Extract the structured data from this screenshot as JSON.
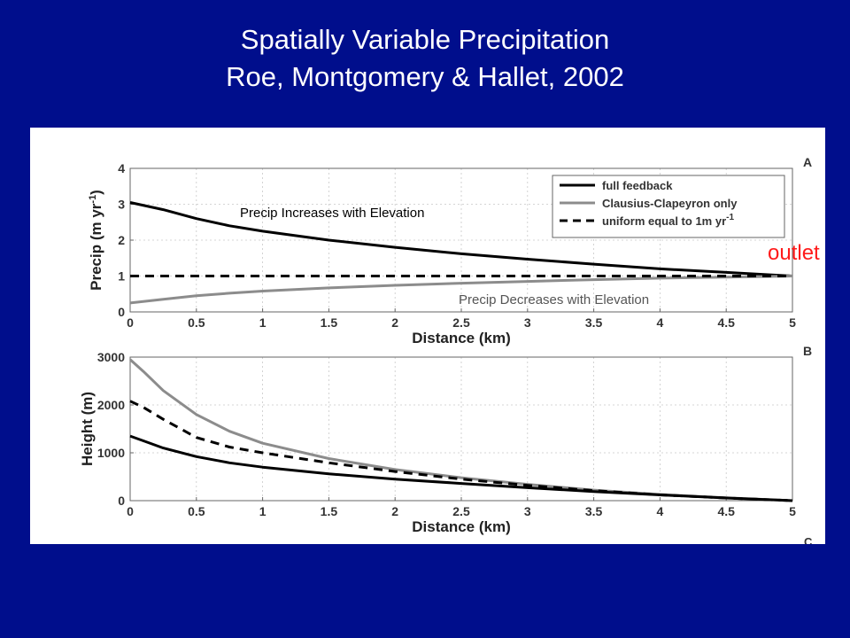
{
  "slide": {
    "title_line1": "Spatially Variable Precipitation",
    "title_line2": "Roe, Montgomery & Hallet, 2002"
  },
  "colors": {
    "background": "#000e8c",
    "title": "#ffffff",
    "outlet": "#ff1a1a",
    "full_feedback": "#000000",
    "clausius_clapeyron": "#8c8c8c",
    "uniform": "#000000",
    "annotation_increase": "#000000",
    "annotation_decrease": "#555555"
  },
  "outlet_label": "outlet",
  "chart_data": [
    {
      "type": "line",
      "panel_label": "A",
      "xlabel": "Distance (km)",
      "ylabel": "Precip (m yr",
      "ylabel_exp": "-1",
      "ylabel_close": ")",
      "xlim": [
        0,
        5
      ],
      "ylim": [
        0,
        4
      ],
      "xticks": [
        "0",
        "0.5",
        "1",
        "1.5",
        "2",
        "2.5",
        "3",
        "3.5",
        "4",
        "4.5",
        "5"
      ],
      "yticks": [
        "0",
        "1",
        "2",
        "3",
        "4"
      ],
      "grid": true,
      "legend_position": "top-right",
      "legend": {
        "entry1": "full feedback",
        "entry2": "Clausius-Clapeyron only",
        "entry3": "uniform equal to 1m yr",
        "entry3_exp": "-1"
      },
      "annotations": {
        "increase": "Precip Increases with Elevation",
        "decrease": "Precip Decreases with Elevation"
      },
      "series": [
        {
          "name": "full feedback",
          "style": "solid-black",
          "x": [
            0,
            0.25,
            0.5,
            0.75,
            1,
            1.5,
            2,
            2.5,
            3,
            3.5,
            4,
            4.5,
            5
          ],
          "y": [
            3.05,
            2.85,
            2.6,
            2.4,
            2.25,
            2.0,
            1.8,
            1.62,
            1.47,
            1.33,
            1.2,
            1.1,
            1.0
          ]
        },
        {
          "name": "Clausius-Clapeyron only",
          "style": "solid-gray",
          "x": [
            0,
            0.25,
            0.5,
            0.75,
            1,
            1.5,
            2,
            2.5,
            3,
            3.5,
            4,
            4.5,
            5
          ],
          "y": [
            0.25,
            0.35,
            0.45,
            0.52,
            0.58,
            0.67,
            0.74,
            0.8,
            0.85,
            0.9,
            0.94,
            0.97,
            1.0
          ]
        },
        {
          "name": "uniform equal to 1m yr-1",
          "style": "dashed-black",
          "x": [
            0,
            5
          ],
          "y": [
            1.0,
            1.0
          ]
        }
      ]
    },
    {
      "type": "line",
      "panel_label": "B",
      "xlabel": "Distance (km)",
      "ylabel": "Height (m)",
      "xlim": [
        0,
        5
      ],
      "ylim": [
        0,
        3000
      ],
      "xticks": [
        "0",
        "0.5",
        "1",
        "1.5",
        "2",
        "2.5",
        "3",
        "3.5",
        "4",
        "4.5",
        "5"
      ],
      "yticks": [
        "0",
        "1000",
        "2000",
        "3000"
      ],
      "grid": true,
      "series": [
        {
          "name": "Clausius-Clapeyron only",
          "style": "solid-gray",
          "x": [
            0,
            0.1,
            0.25,
            0.5,
            0.75,
            1,
            1.5,
            2,
            2.5,
            3,
            3.5,
            4,
            4.5,
            5
          ],
          "y": [
            2950,
            2700,
            2300,
            1800,
            1450,
            1200,
            880,
            650,
            480,
            340,
            220,
            130,
            60,
            0
          ]
        },
        {
          "name": "uniform equal to 1m yr-1",
          "style": "dashed-black",
          "x": [
            0,
            0.1,
            0.25,
            0.5,
            0.75,
            1,
            1.5,
            2,
            2.5,
            3,
            3.5,
            4,
            4.5,
            5
          ],
          "y": [
            2080,
            1950,
            1700,
            1320,
            1120,
            1000,
            790,
            610,
            450,
            320,
            210,
            120,
            55,
            0
          ]
        },
        {
          "name": "full feedback",
          "style": "solid-black",
          "x": [
            0,
            0.1,
            0.25,
            0.5,
            0.75,
            1,
            1.5,
            2,
            2.5,
            3,
            3.5,
            4,
            4.5,
            5
          ],
          "y": [
            1350,
            1250,
            1100,
            920,
            790,
            700,
            560,
            450,
            360,
            270,
            190,
            120,
            55,
            0
          ]
        }
      ]
    }
  ],
  "panel_c_label": "C"
}
